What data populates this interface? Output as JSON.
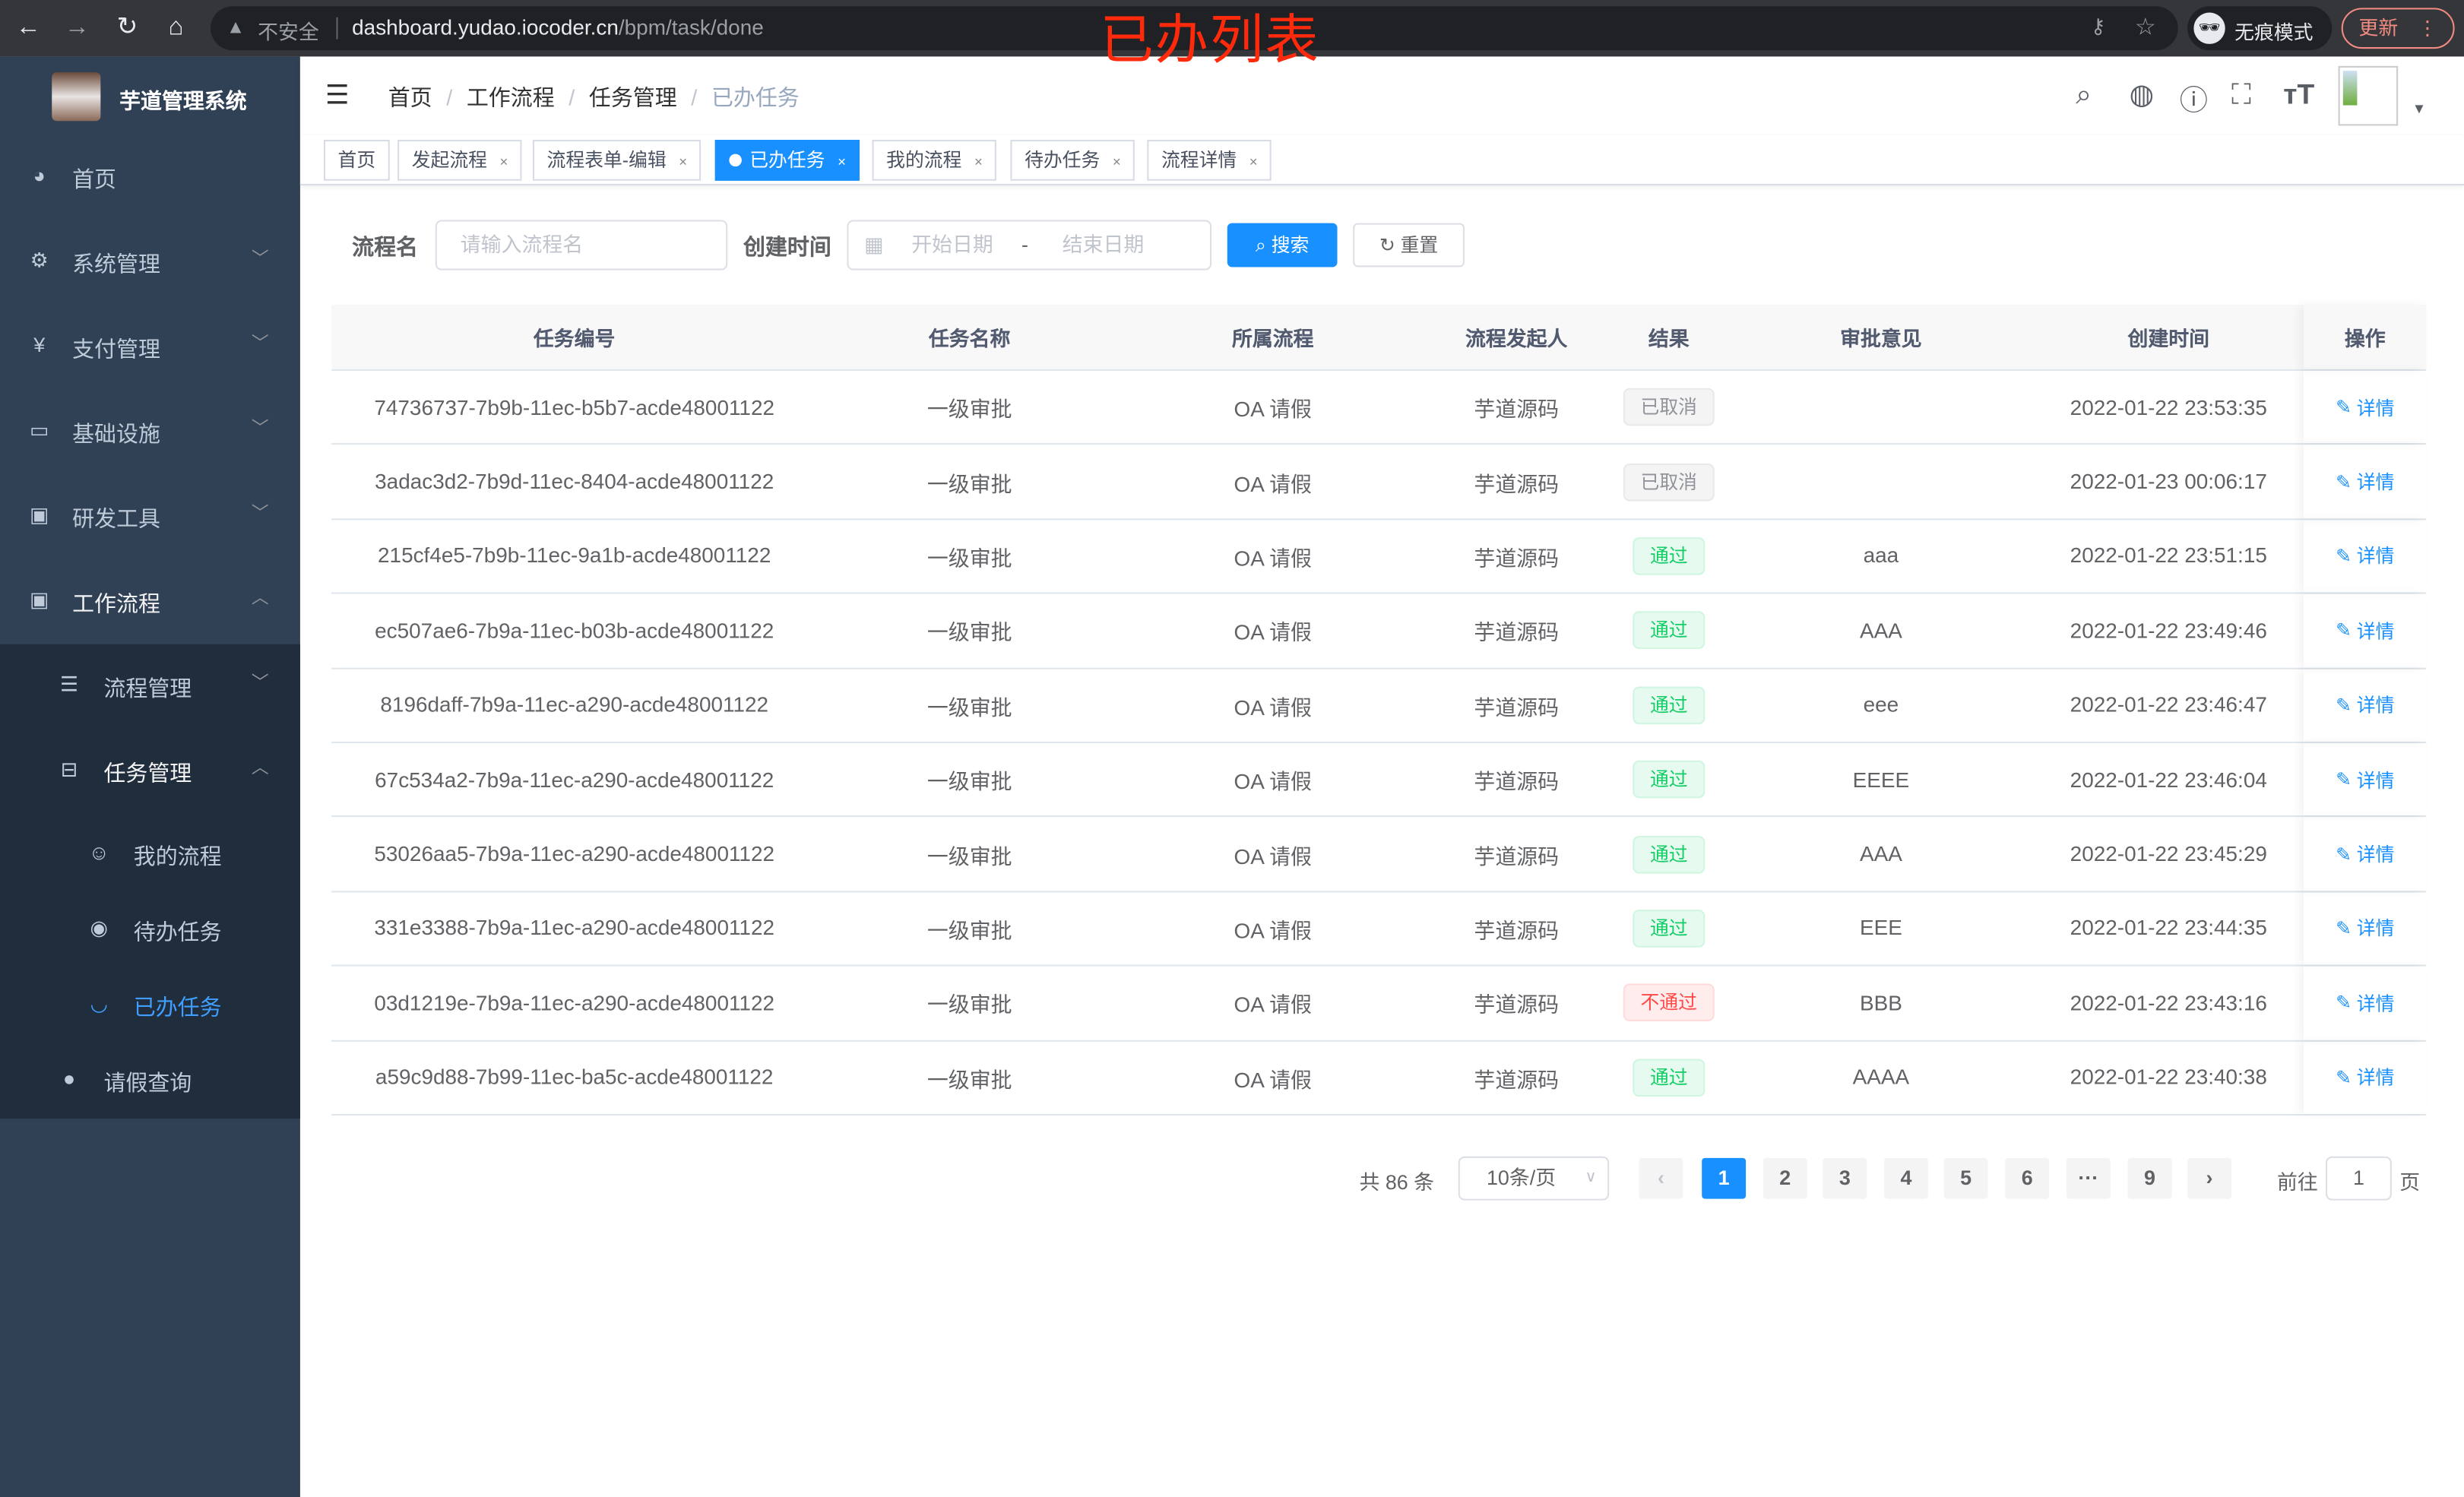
{
  "browser": {
    "insecure_label": "不安全",
    "url_host": "dashboard.yudao.iocoder.cn",
    "url_path": "/bpm/task/done",
    "incognito_label": "无痕模式",
    "update_label": "更新"
  },
  "overlay_title": "已办列表",
  "sidebar": {
    "app_title": "芋道管理系统",
    "items": [
      {
        "label": "首页",
        "icon": "dashboard-icon"
      },
      {
        "label": "系统管理",
        "icon": "gear-icon"
      },
      {
        "label": "支付管理",
        "icon": "yen-icon"
      },
      {
        "label": "基础设施",
        "icon": "monitor-icon"
      },
      {
        "label": "研发工具",
        "icon": "toolbox-icon"
      },
      {
        "label": "工作流程",
        "icon": "toolbox-icon"
      }
    ],
    "workflow_children": [
      {
        "label": "流程管理",
        "icon": "tree-list-icon"
      },
      {
        "label": "任务管理",
        "icon": "task-icon"
      }
    ],
    "task_children": [
      {
        "label": "我的流程",
        "icon": "people-icon"
      },
      {
        "label": "待办任务",
        "icon": "eye-icon"
      },
      {
        "label": "已办任务",
        "icon": "eye-closed-icon",
        "active": true
      }
    ],
    "leave_query": {
      "label": "请假查询",
      "icon": "user-icon"
    }
  },
  "breadcrumb": [
    "首页",
    "工作流程",
    "任务管理",
    "已办任务"
  ],
  "tags": [
    {
      "label": "首页"
    },
    {
      "label": "发起流程"
    },
    {
      "label": "流程表单-编辑"
    },
    {
      "label": "已办任务",
      "active": true
    },
    {
      "label": "我的流程"
    },
    {
      "label": "待办任务"
    },
    {
      "label": "流程详情"
    }
  ],
  "search": {
    "name_label": "流程名",
    "name_placeholder": "请输入流程名",
    "time_label": "创建时间",
    "start_placeholder": "开始日期",
    "range_sep": "-",
    "end_placeholder": "结束日期",
    "search_button": "搜索",
    "reset_button": "重置"
  },
  "table": {
    "columns": [
      "任务编号",
      "任务名称",
      "所属流程",
      "流程发起人",
      "结果",
      "审批意见",
      "创建时间",
      "操作"
    ],
    "action_label": "详情",
    "rows": [
      {
        "id": "74736737-7b9b-11ec-b5b7-acde48001122",
        "name": "一级审批",
        "process": "OA 请假",
        "initiator": "芋道源码",
        "result": "已取消",
        "result_type": "cancel",
        "comment": "",
        "time": "2022-01-22 23:53:35"
      },
      {
        "id": "3adac3d2-7b9d-11ec-8404-acde48001122",
        "name": "一级审批",
        "process": "OA 请假",
        "initiator": "芋道源码",
        "result": "已取消",
        "result_type": "cancel",
        "comment": "",
        "time": "2022-01-23 00:06:17"
      },
      {
        "id": "215cf4e5-7b9b-11ec-9a1b-acde48001122",
        "name": "一级审批",
        "process": "OA 请假",
        "initiator": "芋道源码",
        "result": "通过",
        "result_type": "pass",
        "comment": "aaa",
        "time": "2022-01-22 23:51:15"
      },
      {
        "id": "ec507ae6-7b9a-11ec-b03b-acde48001122",
        "name": "一级审批",
        "process": "OA 请假",
        "initiator": "芋道源码",
        "result": "通过",
        "result_type": "pass",
        "comment": "AAA",
        "time": "2022-01-22 23:49:46"
      },
      {
        "id": "8196daff-7b9a-11ec-a290-acde48001122",
        "name": "一级审批",
        "process": "OA 请假",
        "initiator": "芋道源码",
        "result": "通过",
        "result_type": "pass",
        "comment": "eee",
        "time": "2022-01-22 23:46:47"
      },
      {
        "id": "67c534a2-7b9a-11ec-a290-acde48001122",
        "name": "一级审批",
        "process": "OA 请假",
        "initiator": "芋道源码",
        "result": "通过",
        "result_type": "pass",
        "comment": "EEEE",
        "time": "2022-01-22 23:46:04"
      },
      {
        "id": "53026aa5-7b9a-11ec-a290-acde48001122",
        "name": "一级审批",
        "process": "OA 请假",
        "initiator": "芋道源码",
        "result": "通过",
        "result_type": "pass",
        "comment": "AAA",
        "time": "2022-01-22 23:45:29"
      },
      {
        "id": "331e3388-7b9a-11ec-a290-acde48001122",
        "name": "一级审批",
        "process": "OA 请假",
        "initiator": "芋道源码",
        "result": "通过",
        "result_type": "pass",
        "comment": "EEE",
        "time": "2022-01-22 23:44:35"
      },
      {
        "id": "03d1219e-7b9a-11ec-a290-acde48001122",
        "name": "一级审批",
        "process": "OA 请假",
        "initiator": "芋道源码",
        "result": "不通过",
        "result_type": "reject",
        "comment": "BBB",
        "time": "2022-01-22 23:43:16"
      },
      {
        "id": "a59c9d88-7b99-11ec-ba5c-acde48001122",
        "name": "一级审批",
        "process": "OA 请假",
        "initiator": "芋道源码",
        "result": "通过",
        "result_type": "pass",
        "comment": "AAAA",
        "time": "2022-01-22 23:40:38"
      }
    ]
  },
  "pagination": {
    "total_label": "共 86 条",
    "page_size": "10条/页",
    "pages": [
      "1",
      "2",
      "3",
      "4",
      "5",
      "6",
      "···",
      "9"
    ],
    "current": "1",
    "goto_prefix": "前往",
    "goto_value": "1",
    "goto_suffix": "页"
  },
  "colors": {
    "primary": "#1890ff",
    "sidebar": "#304156",
    "submenu": "#1f2d3d",
    "pass": "#13ce66",
    "reject": "#ff4949",
    "cancel": "#909399"
  }
}
